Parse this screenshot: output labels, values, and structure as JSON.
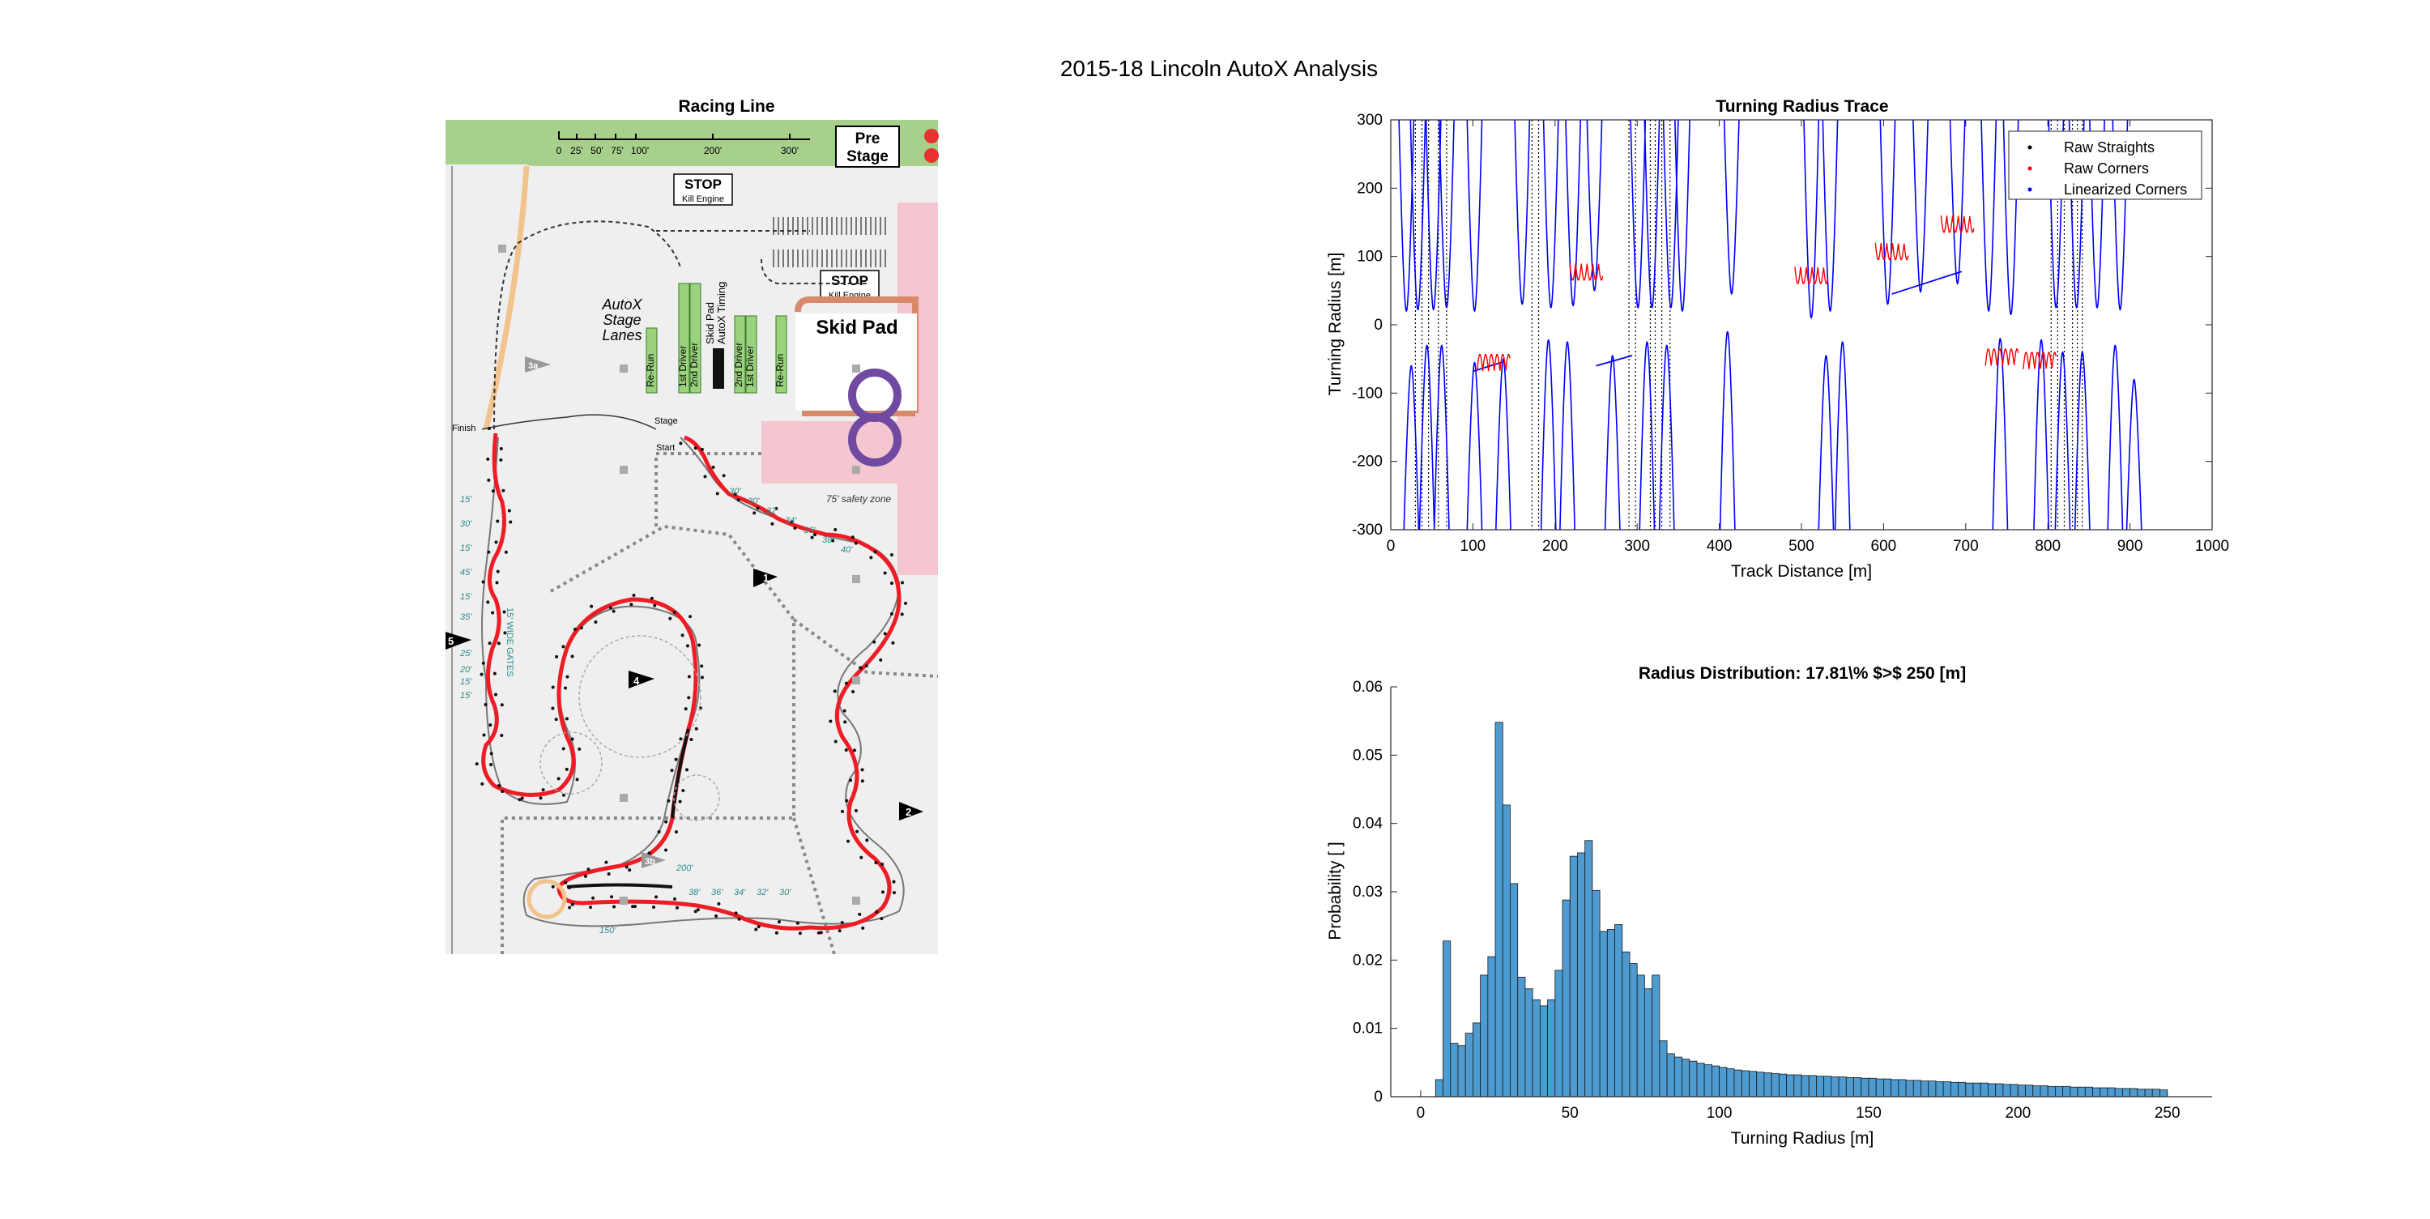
{
  "figure_title": "2015-18 Lincoln AutoX Analysis",
  "map": {
    "title": "Racing Line",
    "scale_labels": [
      "0",
      "25'",
      "50'",
      "75'",
      "100'",
      "200'",
      "300'"
    ],
    "pre_stage": [
      "Pre",
      "Stage"
    ],
    "stop1": [
      "STOP",
      "Kill Engine"
    ],
    "stop2": [
      "STOP",
      "Kill Engine"
    ],
    "stage_lanes": [
      "AutoX",
      "Stage",
      "Lanes"
    ],
    "skid_pad": "Skid Pad",
    "safety_zone": "75' safety zone",
    "finish": "Finish",
    "stage": "Stage",
    "start": "Start",
    "lanes_left": [
      "Re-Run",
      "1st Driver",
      "2nd Driver"
    ],
    "lanes_right": [
      "2nd Driver",
      "1st Driver",
      "Re-Run"
    ],
    "timing": [
      "Skid Pad",
      "AutoX Timing"
    ],
    "left_gates": [
      "15'",
      "30'",
      "15'",
      "45'",
      "15'",
      "35'",
      "25'",
      "20'",
      "15'",
      "15'"
    ],
    "wide_gates": "15' WIDE GATES",
    "top_gates": [
      "30'",
      "30'",
      "32'",
      "34'",
      "36'",
      "38'",
      "40'"
    ],
    "bottom_gates": [
      "38'",
      "36'",
      "34'",
      "32'",
      "30'"
    ],
    "labels_200": "200'",
    "labels_150": "150'",
    "markers": [
      "1",
      "2",
      "3a",
      "3b",
      "4",
      "5"
    ],
    "colors": {
      "grass": "#a8d08d",
      "racing_line": "#ee1c24",
      "skid_pad": "#6f4aa0",
      "safety": "#f4c6cf",
      "lanes": "#9bd27e"
    }
  },
  "chart_data": [
    {
      "type": "line",
      "title": "Turning Radius Trace",
      "xlabel": "Track Distance [m]",
      "ylabel": "Turning Radius [m]",
      "xlim": [
        0,
        1000
      ],
      "ylim": [
        -300,
        300
      ],
      "xticks": [
        0,
        100,
        200,
        300,
        400,
        500,
        600,
        700,
        800,
        900,
        1000
      ],
      "yticks": [
        -300,
        -200,
        -100,
        0,
        100,
        200,
        300
      ],
      "grid": false,
      "legend_position": "top-right",
      "series": [
        {
          "name": "Raw Straights",
          "color": "#000000",
          "straight_x": [
            30,
            38,
            46,
            58,
            68,
            172,
            180,
            290,
            298,
            316,
            322,
            330,
            340,
            804,
            812,
            820,
            830,
            836,
            842
          ]
        },
        {
          "name": "Raw Corners",
          "color": "#ff0000",
          "wiggles": [
            [
              125,
              -68
            ],
            [
              238,
              90
            ],
            [
              512,
              85
            ],
            [
              610,
              120
            ],
            [
              690,
              160
            ],
            [
              744,
              -60
            ],
            [
              790,
              -65
            ]
          ]
        },
        {
          "name": "Linearized Corners",
          "color": "#0000ff",
          "lobes_pos": [
            [
              19,
              20
            ],
            [
              33,
              22
            ],
            [
              52,
              22
            ],
            [
              68,
              25
            ],
            [
              102,
              20
            ],
            [
              160,
              30
            ],
            [
              195,
              25
            ],
            [
              222,
              28
            ],
            [
              248,
              50
            ],
            [
              301,
              25
            ],
            [
              318,
              25
            ],
            [
              341,
              25
            ],
            [
              355,
              20
            ],
            [
              415,
              45
            ],
            [
              512,
              10
            ],
            [
              535,
              20
            ],
            [
              605,
              30
            ],
            [
              645,
              48
            ],
            [
              690,
              60
            ],
            [
              728,
              20
            ],
            [
              755,
              15
            ],
            [
              810,
              25
            ],
            [
              835,
              25
            ],
            [
              860,
              25
            ],
            [
              888,
              22
            ]
          ],
          "lobes_neg": [
            [
              25,
              -60
            ],
            [
              44,
              -30
            ],
            [
              62,
              -30
            ],
            [
              102,
              -55
            ],
            [
              137,
              -50
            ],
            [
              192,
              -22
            ],
            [
              215,
              -25
            ],
            [
              270,
              -45
            ],
            [
              312,
              -25
            ],
            [
              336,
              -30
            ],
            [
              410,
              -10
            ],
            [
              530,
              -45
            ],
            [
              550,
              -25
            ],
            [
              742,
              -20
            ],
            [
              792,
              -22
            ],
            [
              818,
              -40
            ],
            [
              842,
              -40
            ],
            [
              882,
              -30
            ],
            [
              905,
              -80
            ]
          ],
          "lines": [
            [
              100,
              -68,
              135,
              -55
            ],
            [
              250,
              -60,
              294,
              -45
            ],
            [
              610,
              45,
              695,
              78
            ]
          ]
        }
      ]
    },
    {
      "type": "bar",
      "title": "Radius Distribution: 17.81\\% $>$ 250 [m]",
      "xlabel": "Turning Radius [m]",
      "ylabel": "Probability [ ]",
      "xlim": [
        -10,
        265
      ],
      "ylim": [
        0,
        0.06
      ],
      "xticks": [
        0,
        50,
        100,
        150,
        200,
        250
      ],
      "yticks": [
        0,
        0.01,
        0.02,
        0.03,
        0.04,
        0.05,
        0.06
      ],
      "bar_color": "#4d9bd0",
      "bin_edges": [
        5,
        7.5,
        10,
        12.5,
        15,
        17.5,
        20,
        22.5,
        25,
        27.5,
        30,
        32.5,
        35,
        37.5,
        40,
        42.5,
        45,
        47.5,
        50,
        52.5,
        55,
        57.5,
        60,
        62.5,
        65,
        67.5,
        70,
        72.5,
        75,
        77.5,
        80,
        82.5,
        85,
        87.5,
        90,
        92.5,
        95,
        97.5,
        100,
        102.5,
        105,
        107.5,
        110,
        112.5,
        115,
        117.5,
        120,
        122.5,
        125,
        127.5,
        130,
        132.5,
        135,
        137.5,
        140,
        142.5,
        145,
        147.5,
        150,
        152.5,
        155,
        157.5,
        160,
        162.5,
        165,
        167.5,
        170,
        172.5,
        175,
        177.5,
        180,
        182.5,
        185,
        187.5,
        190,
        192.5,
        195,
        197.5,
        200,
        202.5,
        205,
        207.5,
        210,
        212.5,
        215,
        217.5,
        220,
        222.5,
        225,
        227.5,
        230,
        232.5,
        235,
        237.5,
        240,
        242.5,
        245,
        247.5,
        250
      ],
      "values": [
        0.0025,
        0.0228,
        0.0078,
        0.0075,
        0.0093,
        0.0108,
        0.0178,
        0.0205,
        0.0548,
        0.0427,
        0.0312,
        0.0175,
        0.0158,
        0.0142,
        0.0133,
        0.0142,
        0.0185,
        0.0288,
        0.0352,
        0.0357,
        0.0375,
        0.0302,
        0.0242,
        0.0245,
        0.0252,
        0.0212,
        0.0195,
        0.0178,
        0.0158,
        0.0178,
        0.0082,
        0.0063,
        0.0058,
        0.0055,
        0.0052,
        0.0049,
        0.0047,
        0.0045,
        0.0043,
        0.0041,
        0.0039,
        0.0038,
        0.0037,
        0.0036,
        0.0035,
        0.0034,
        0.0033,
        0.0032,
        0.0032,
        0.0031,
        0.0031,
        0.003,
        0.003,
        0.0029,
        0.0029,
        0.0028,
        0.0028,
        0.0027,
        0.0027,
        0.0026,
        0.0026,
        0.0025,
        0.0025,
        0.0024,
        0.0024,
        0.0023,
        0.0023,
        0.0022,
        0.0022,
        0.0021,
        0.0021,
        0.002,
        0.002,
        0.002,
        0.0019,
        0.0019,
        0.0018,
        0.0018,
        0.0017,
        0.0017,
        0.0016,
        0.0016,
        0.0015,
        0.0015,
        0.0015,
        0.0014,
        0.0014,
        0.0014,
        0.0013,
        0.0013,
        0.0013,
        0.0012,
        0.0012,
        0.0012,
        0.0011,
        0.0011,
        0.0011,
        0.001
      ]
    }
  ]
}
